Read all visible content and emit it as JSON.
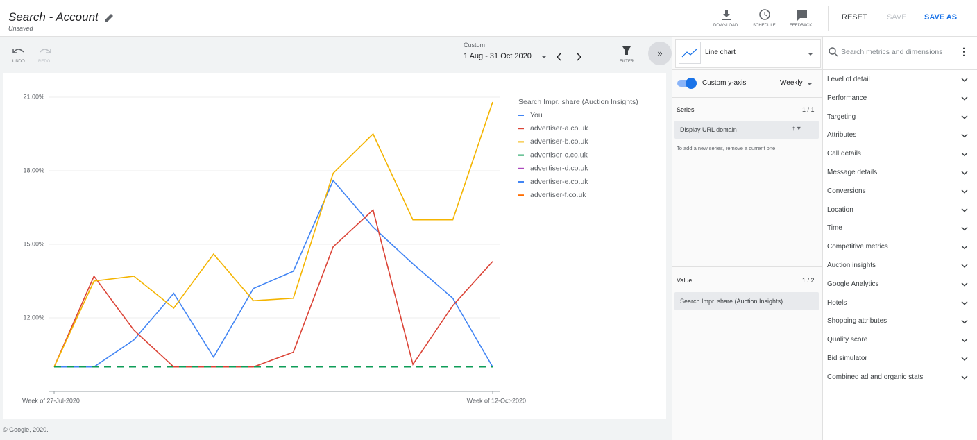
{
  "header": {
    "title": "Search - Account",
    "subtitle": "Unsaved",
    "actions": [
      "DOWNLOAD",
      "SCHEDULE",
      "FEEDBACK"
    ],
    "buttons": [
      "RESET",
      "SAVE",
      "SAVE AS"
    ]
  },
  "toolbar": {
    "undo": "UNDO",
    "redo": "REDO",
    "date_label": "Custom",
    "date_range": "1 Aug - 31 Oct 2020",
    "filter": "FILTER"
  },
  "chart_data": {
    "type": "line",
    "legend_title": "Search Impr. share (Auction Insights)",
    "categories": [
      "Week of 27-Jul-2020",
      null,
      null,
      null,
      null,
      null,
      null,
      null,
      null,
      null,
      null,
      "Week of 12-Oct-2020"
    ],
    "series": [
      {
        "name": "You",
        "color": "#4285f4",
        "values": [
          10.0,
          10.0,
          11.1,
          13.0,
          10.4,
          13.2,
          13.9,
          17.6,
          15.7,
          14.2,
          12.8,
          10.0
        ]
      },
      {
        "name": "advertiser-a.co.uk",
        "color": "#db4437",
        "values": [
          10.0,
          13.7,
          11.5,
          10.0,
          10.0,
          10.0,
          10.6,
          14.9,
          16.4,
          10.1,
          12.5,
          14.3
        ]
      },
      {
        "name": "advertiser-b.co.uk",
        "color": "#f4b400",
        "values": [
          10.0,
          13.5,
          13.7,
          12.4,
          14.6,
          12.7,
          12.8,
          17.9,
          19.5,
          16.0,
          16.0,
          20.8
        ]
      },
      {
        "name": "advertiser-c.co.uk",
        "color": "#0f9d58",
        "values": [
          10.0,
          10.0,
          10.0,
          10.0,
          10.0,
          10.0,
          10.0,
          10.0,
          10.0,
          10.0,
          10.0,
          10.0
        ]
      },
      {
        "name": "advertiser-d.co.uk",
        "color": "#ab47bc",
        "values": [
          10.0,
          10.0,
          10.0,
          10.0,
          10.0,
          10.0,
          10.0,
          10.0,
          10.0,
          10.0,
          10.0,
          10.0
        ]
      },
      {
        "name": "advertiser-e.co.uk",
        "color": "#4285f4",
        "values": [
          10.0,
          10.0,
          10.0,
          10.0,
          10.0,
          10.0,
          10.0,
          10.0,
          10.0,
          10.0,
          10.0,
          10.0
        ]
      },
      {
        "name": "advertiser-f.co.uk",
        "color": "#ff6d00",
        "values": [
          10.0,
          10.0,
          10.0,
          10.0,
          10.0,
          10.0,
          10.0,
          10.0,
          10.0,
          10.0,
          10.0,
          10.0
        ]
      }
    ],
    "ylim": [
      9,
      21.3
    ],
    "yticks": [
      {
        "value": 12,
        "label": "12.00%"
      },
      {
        "value": 15,
        "label": "15.00%"
      },
      {
        "value": 18,
        "label": "18.00%"
      },
      {
        "value": 21,
        "label": "21.00%"
      }
    ],
    "grid": true
  },
  "footer": "© Google, 2020.",
  "editor": {
    "chart_type": "Line chart",
    "custom_y_axis": "Custom y-axis",
    "granularity": "Weekly",
    "series_label": "Series",
    "series_count": "1 / 1",
    "series_item": "Display URL domain",
    "series_hint": "To add a new series, remove a current one",
    "value_label": "Value",
    "value_count": "1 / 2",
    "value_item": "Search Impr. share (Auction Insights)"
  },
  "sidebar": {
    "search_placeholder": "Search metrics and dimensions",
    "groups": [
      "Level of detail",
      "Performance",
      "Targeting",
      "Attributes",
      "Call details",
      "Message details",
      "Conversions",
      "Location",
      "Time",
      "Competitive metrics",
      "Auction insights",
      "Google Analytics",
      "Hotels",
      "Shopping attributes",
      "Quality score",
      "Bid simulator",
      "Combined ad and organic stats"
    ]
  }
}
